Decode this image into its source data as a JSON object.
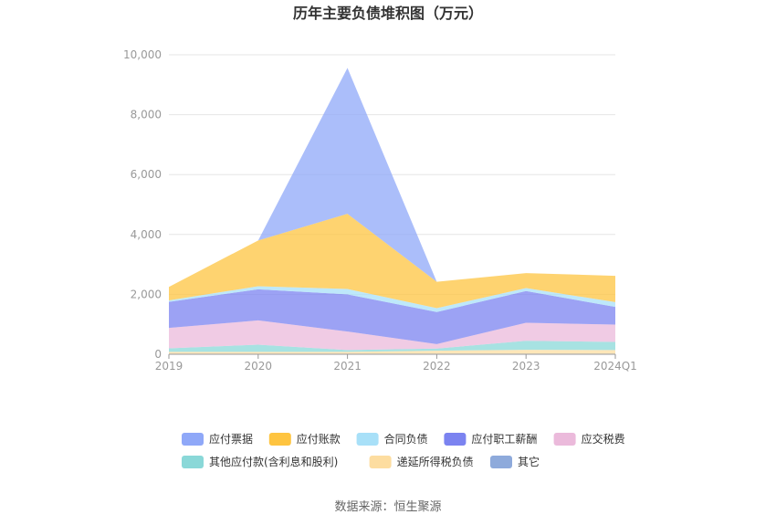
{
  "chart_data": {
    "type": "area",
    "stacked": true,
    "title": "历年主要负债堆积图（万元）",
    "categories": [
      "2019",
      "2020",
      "2021",
      "2022",
      "2023",
      "2024Q1"
    ],
    "ylim": [
      0,
      10000
    ],
    "yticks": [
      "0",
      "2,000",
      "4,000",
      "6,000",
      "8,000",
      "10,000"
    ],
    "grid": true,
    "legend_position": "bottom",
    "series": [
      {
        "name": "其它",
        "color": "#8eaadb",
        "values": [
          20,
          20,
          20,
          20,
          20,
          20
        ]
      },
      {
        "name": "递延所得税负债",
        "color": "#fddda0",
        "values": [
          60,
          60,
          60,
          100,
          130,
          120
        ]
      },
      {
        "name": "其他应付款(含利息和股利)",
        "color": "#8ad8d8",
        "values": [
          120,
          240,
          60,
          70,
          300,
          270
        ]
      },
      {
        "name": "应交税费",
        "color": "#ebbadb",
        "values": [
          680,
          810,
          620,
          150,
          600,
          580
        ]
      },
      {
        "name": "应付职工薪酬",
        "color": "#7b83f0",
        "values": [
          870,
          1040,
          1240,
          1070,
          1060,
          590
        ]
      },
      {
        "name": "合同负债",
        "color": "#a8e0f8",
        "values": [
          50,
          100,
          180,
          130,
          100,
          160
        ]
      },
      {
        "name": "应付账款",
        "color": "#fec440",
        "values": [
          450,
          1530,
          2510,
          880,
          500,
          880
        ]
      },
      {
        "name": "应付票据",
        "color": "#8fa8f8",
        "values": [
          0,
          0,
          4870,
          0,
          0,
          0
        ]
      }
    ],
    "legend_order": [
      "应付票据",
      "应付账款",
      "合同负债",
      "应付职工薪酬",
      "应交税费",
      "其他应付款(含利息和股利)",
      "递延所得税负债",
      "其它"
    ]
  },
  "source": "数据来源：恒生聚源"
}
